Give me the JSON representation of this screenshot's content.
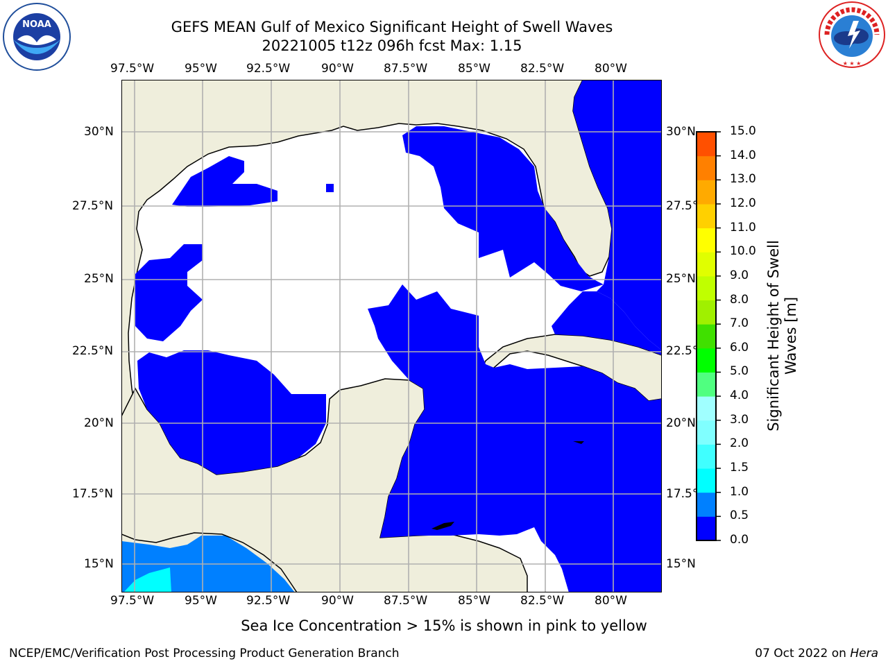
{
  "title_line1": "GEFS MEAN Gulf of Mexico Significant Height of Swell Waves",
  "title_line2": "20221005 t12z 096h fcst   Max: 1.15",
  "footer_note": "Sea Ice Concentration > 15% is shown in pink to yellow",
  "footer_left": "NCEP/EMC/Verification Post Processing Product Generation Branch",
  "footer_date": "07 Oct 2022 on ",
  "footer_host": "Hera",
  "logos": {
    "left": "NOAA",
    "right": "NATIONAL WEATHER SERVICE",
    "left_icon": "noaa-logo",
    "right_icon": "nws-logo"
  },
  "lon_labels": [
    "97.5°W",
    "95°W",
    "92.5°W",
    "90°W",
    "87.5°W",
    "85°W",
    "82.5°W",
    "80°W"
  ],
  "lat_labels": [
    "30°N",
    "27.5°N",
    "25°N",
    "22.5°N",
    "20°N",
    "17.5°N",
    "15°N"
  ],
  "colorbar": {
    "label_line1": "Significant Height of Swell",
    "label_line2": "Waves [m]",
    "ticks": [
      "0.0",
      "0.5",
      "1.0",
      "1.5",
      "2.0",
      "3.0",
      "4.0",
      "5.0",
      "6.0",
      "7.0",
      "8.0",
      "9.0",
      "10.0",
      "11.0",
      "12.0",
      "13.0",
      "14.0",
      "15.0"
    ],
    "colors": [
      "#0000ff",
      "#0080ff",
      "#00ffff",
      "#40ffff",
      "#80ffff",
      "#a0ffff",
      "#50ff80",
      "#00ff00",
      "#40e000",
      "#a0f000",
      "#c0ff00",
      "#e0ff00",
      "#ffff00",
      "#ffd000",
      "#ffaa00",
      "#ff8000",
      "#ff5000",
      "#ff2000",
      "#ff0000"
    ]
  },
  "colors": {
    "land": "#efeedc",
    "swell_low": "#0000ff",
    "swell_mid": "#0080ff",
    "swell_high": "#00ffff",
    "grid": "#b0b0b0"
  }
}
